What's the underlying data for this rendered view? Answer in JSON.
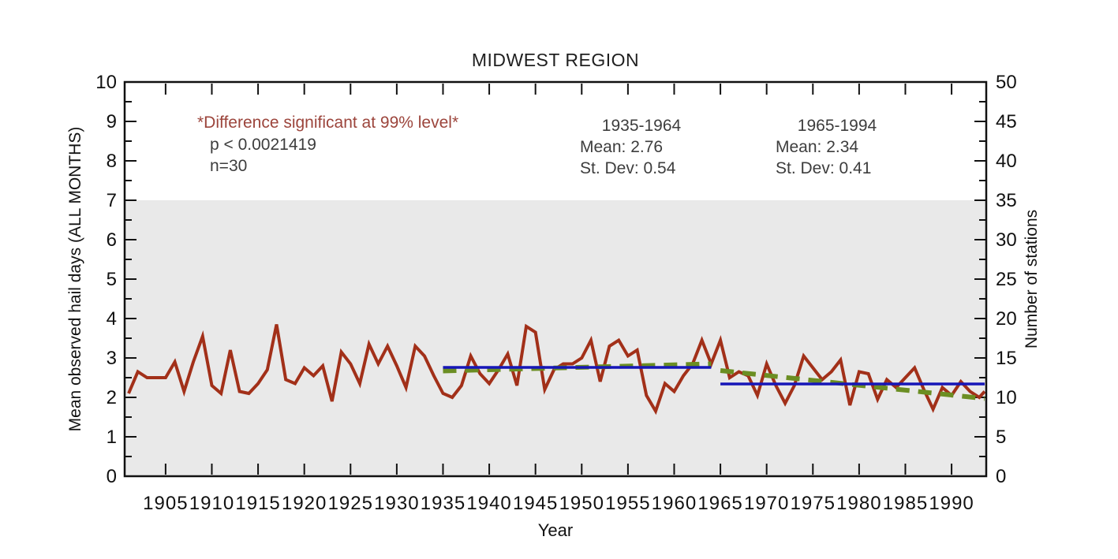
{
  "title": "MIDWEST REGION",
  "annotations": {
    "significance": "*Difference significant at 99% level*",
    "p_value": "p < 0.0021419",
    "n": "n=30"
  },
  "period_stats": [
    {
      "period": "1935-1964",
      "mean_label": "Mean: 2.76",
      "stdev_label": "St. Dev: 0.54"
    },
    {
      "period": "1965-1994",
      "mean_label": "Mean: 2.34",
      "stdev_label": "St. Dev: 0.41"
    }
  ],
  "axes": {
    "x_label": "Year",
    "y_left_label": "Mean observed hail days (ALL MONTHS)",
    "y_right_label": "Number of stations"
  },
  "colors": {
    "series_red": "#a23019",
    "mean_blue": "#1616b8",
    "trend_green": "#6b8e23",
    "shade_gray": "#e9e9e9",
    "annotation_red": "#9c453c",
    "annotation_gray": "#3d3d3d",
    "axis_black": "#111111"
  },
  "chart_data": {
    "type": "line",
    "title": "MIDWEST REGION",
    "xlabel": "Year",
    "ylabel_left": "Mean observed hail days (ALL MONTHS)",
    "ylabel_right": "Number of stations",
    "x_range": [
      1901,
      1994
    ],
    "y_left_range": [
      0,
      10
    ],
    "y_right_range": [
      0,
      50
    ],
    "x_ticks": [
      1905,
      1910,
      1915,
      1920,
      1925,
      1930,
      1935,
      1940,
      1945,
      1950,
      1955,
      1960,
      1965,
      1970,
      1975,
      1980,
      1985,
      1990
    ],
    "y_left_ticks": [
      0,
      1,
      2,
      3,
      4,
      5,
      6,
      7,
      8,
      9,
      10
    ],
    "y_right_ticks": [
      0,
      5,
      10,
      15,
      20,
      25,
      30,
      35,
      40,
      45,
      50
    ],
    "grid": false,
    "shaded_region": {
      "y_min": 0,
      "y_max": 7,
      "color": "#e9e9e9"
    },
    "series": {
      "name": "Mean observed hail days",
      "color": "#a23019",
      "x": [
        1901,
        1902,
        1903,
        1904,
        1905,
        1906,
        1907,
        1908,
        1909,
        1910,
        1911,
        1912,
        1913,
        1914,
        1915,
        1916,
        1917,
        1918,
        1919,
        1920,
        1921,
        1922,
        1923,
        1924,
        1925,
        1926,
        1927,
        1928,
        1929,
        1930,
        1931,
        1932,
        1933,
        1934,
        1935,
        1936,
        1937,
        1938,
        1939,
        1940,
        1941,
        1942,
        1943,
        1944,
        1945,
        1946,
        1947,
        1948,
        1949,
        1950,
        1951,
        1952,
        1953,
        1954,
        1955,
        1956,
        1957,
        1958,
        1959,
        1960,
        1961,
        1962,
        1963,
        1964,
        1965,
        1966,
        1967,
        1968,
        1969,
        1970,
        1971,
        1972,
        1973,
        1974,
        1975,
        1976,
        1977,
        1978,
        1979,
        1980,
        1981,
        1982,
        1983,
        1984,
        1985,
        1986,
        1987,
        1988,
        1989,
        1990,
        1991,
        1992,
        1993,
        1994
      ],
      "values": [
        2.1,
        2.65,
        2.5,
        2.5,
        2.5,
        2.9,
        2.15,
        2.9,
        3.55,
        2.3,
        2.1,
        3.2,
        2.15,
        2.1,
        2.35,
        2.7,
        3.85,
        2.45,
        2.35,
        2.75,
        2.55,
        2.8,
        1.9,
        3.15,
        2.85,
        2.35,
        3.35,
        2.85,
        3.3,
        2.8,
        2.25,
        3.3,
        3.05,
        2.55,
        2.1,
        2.0,
        2.3,
        3.05,
        2.6,
        2.35,
        2.7,
        3.1,
        2.3,
        3.8,
        3.65,
        2.2,
        2.7,
        2.85,
        2.85,
        3.0,
        3.45,
        2.4,
        3.3,
        3.45,
        3.05,
        3.2,
        2.05,
        1.65,
        2.35,
        2.15,
        2.55,
        2.85,
        3.45,
        2.85,
        3.45,
        2.5,
        2.65,
        2.55,
        2.05,
        2.85,
        2.3,
        1.85,
        2.3,
        3.05,
        2.75,
        2.45,
        2.65,
        2.95,
        1.8,
        2.65,
        2.6,
        1.95,
        2.45,
        2.25,
        2.5,
        2.75,
        2.2,
        1.7,
        2.25,
        2.05,
        2.4,
        2.15,
        2.0,
        2.15
      ]
    },
    "mean_lines": [
      {
        "label": "1935-1964 mean",
        "x_start": 1935,
        "x_end": 1964,
        "value": 2.76,
        "color": "#1616b8"
      },
      {
        "label": "1965-1994 mean",
        "x_start": 1965,
        "x_end": 1994,
        "value": 2.34,
        "color": "#1616b8"
      }
    ],
    "trend_lines": [
      {
        "label": "1935-1964 trend",
        "x_start": 1935,
        "y_start": 2.67,
        "x_end": 1964,
        "y_end": 2.85,
        "color": "#6b8e23",
        "style": "dashed"
      },
      {
        "label": "1965-1994 trend",
        "x_start": 1965,
        "y_start": 2.68,
        "x_end": 1994,
        "y_end": 1.97,
        "color": "#6b8e23",
        "style": "dashed"
      }
    ],
    "stats": [
      {
        "period": "1935-1964",
        "mean": 2.76,
        "st_dev": 0.54
      },
      {
        "period": "1965-1994",
        "mean": 2.34,
        "st_dev": 0.41
      }
    ],
    "legend": "none"
  }
}
